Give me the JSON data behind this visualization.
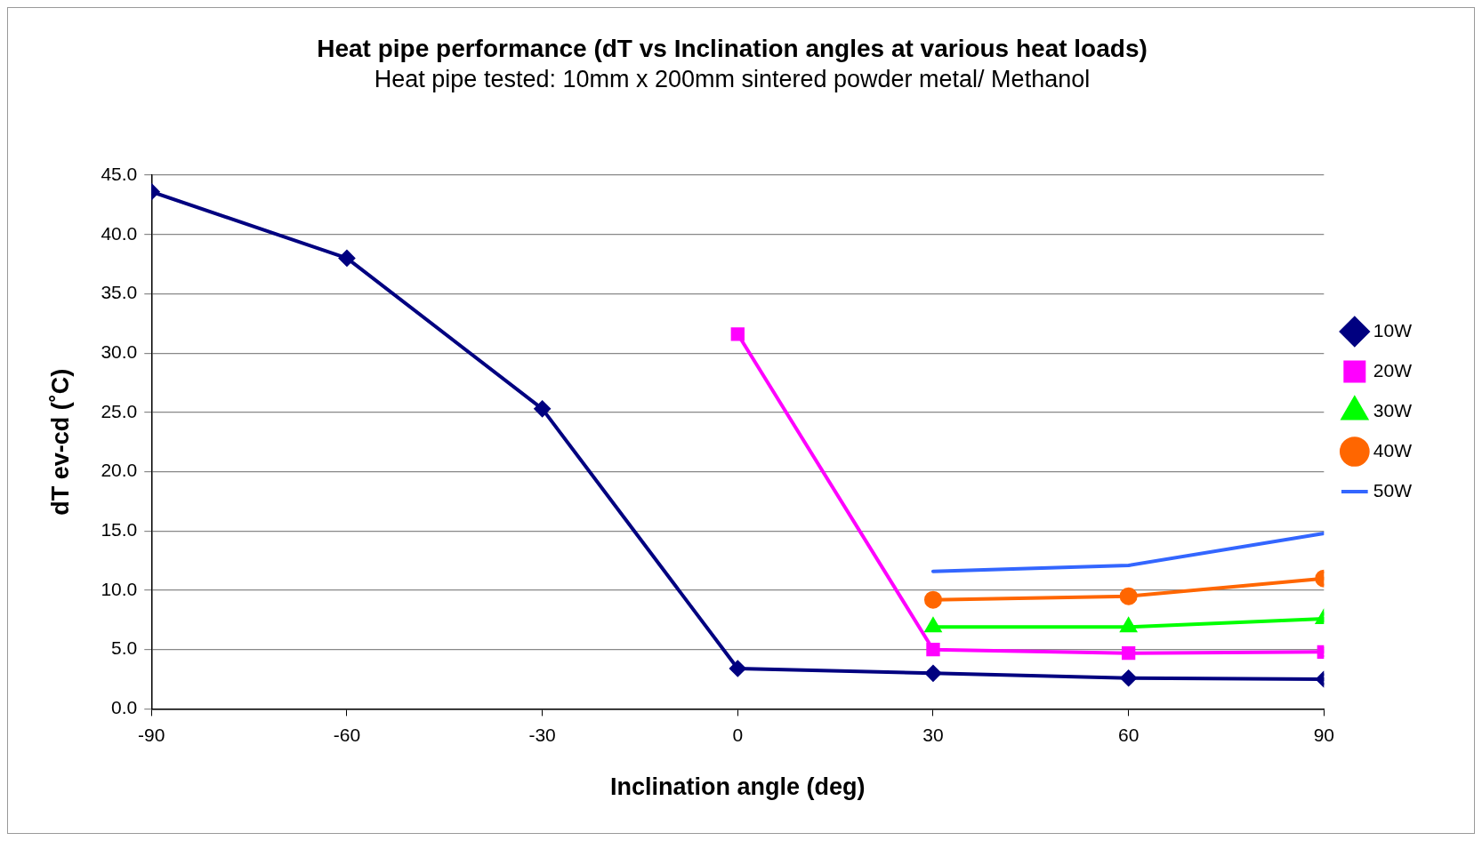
{
  "chart_data": {
    "type": "line",
    "title": "Heat pipe performance (dT vs Inclination angles at various heat loads)",
    "subtitle": "Heat pipe tested: 10mm x 200mm sintered powder metal/ Methanol",
    "xlabel": "Inclination angle (deg)",
    "ylabel": "dT ev-cd (˚C)",
    "x": [
      -90,
      -60,
      -30,
      0,
      30,
      60,
      90
    ],
    "series": [
      {
        "name": "10W",
        "color": "#000080",
        "marker": "diamond",
        "values": [
          43.6,
          38.0,
          25.3,
          3.4,
          3.0,
          2.6,
          2.5
        ]
      },
      {
        "name": "20W",
        "color": "#ff00ff",
        "marker": "square",
        "values": [
          null,
          null,
          null,
          31.6,
          5.0,
          4.7,
          4.8
        ]
      },
      {
        "name": "30W",
        "color": "#00ff00",
        "marker": "triangle",
        "values": [
          null,
          null,
          null,
          null,
          6.9,
          6.9,
          7.6
        ]
      },
      {
        "name": "40W",
        "color": "#ff6600",
        "marker": "circle",
        "values": [
          null,
          null,
          null,
          null,
          9.2,
          9.5,
          11.0
        ]
      },
      {
        "name": "50W",
        "color": "#3366ff",
        "marker": "none",
        "values": [
          null,
          null,
          null,
          null,
          11.6,
          12.1,
          14.8
        ]
      }
    ],
    "xlim": [
      -90,
      90
    ],
    "xticks": [
      -90,
      -60,
      -30,
      0,
      30,
      60,
      90
    ],
    "ylim": [
      0,
      45
    ],
    "yticks": [
      {
        "value": 0,
        "label": "0.0"
      },
      {
        "value": 5,
        "label": "5.0"
      },
      {
        "value": 10,
        "label": "10.0"
      },
      {
        "value": 15,
        "label": "15.0"
      },
      {
        "value": 20,
        "label": "20.0"
      },
      {
        "value": 25,
        "label": "25.0"
      },
      {
        "value": 30,
        "label": "30.0"
      },
      {
        "value": 35,
        "label": "35.0"
      },
      {
        "value": 40,
        "label": "40.0"
      },
      {
        "value": 45,
        "label": "45.0"
      }
    ],
    "grid": "y",
    "legend": "right"
  }
}
